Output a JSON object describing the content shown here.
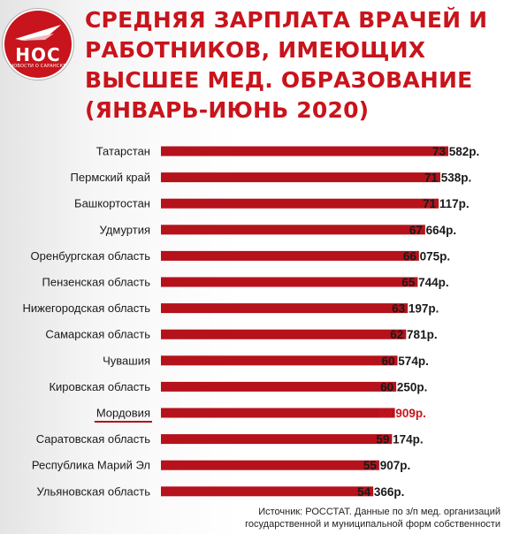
{
  "logo": {
    "text": "НОС",
    "subtext": "НОВОСТИ О САРАНСКЕ"
  },
  "title_lines": [
    "Средняя зарплата врачей и",
    "работников, имеющих",
    "высшее мед. образование",
    "(январь-июнь 2020)"
  ],
  "source_lines": [
    "Источник: РОССТАТ. Данные по з/п мед. организаций",
    "государственной и муниципальной форм собственности"
  ],
  "colors": {
    "bar": "#b5121b",
    "highlight_text": "#c8141c",
    "text": "#1a1a1a"
  },
  "chart_data": {
    "type": "bar",
    "orientation": "horizontal",
    "highlight": "Мордовия",
    "categories": [
      "Татарстан",
      "Пермский край",
      "Башкортостан",
      "Удмуртия",
      "Оренбургская область",
      "Пензенская область",
      "Нижегородская область",
      "Самарская область",
      "Чувашия",
      "Кировская область",
      "Мордовия",
      "Саратовская область",
      "Республика Марий Эл",
      "Ульяновская область"
    ],
    "values": [
      73582,
      71538,
      71117,
      67664,
      66075,
      65744,
      63197,
      62781,
      60574,
      60250,
      59909,
      59174,
      55907,
      54366
    ],
    "value_labels": [
      "73 582р.",
      "71 538р.",
      "71 117р.",
      "67 664р.",
      "66 075р.",
      "65 744р.",
      "63 197р.",
      "62 781р.",
      "60 574р.",
      "60 250р.",
      "59 909р.",
      "59 174р.",
      "55 907р.",
      "54 366р."
    ]
  }
}
